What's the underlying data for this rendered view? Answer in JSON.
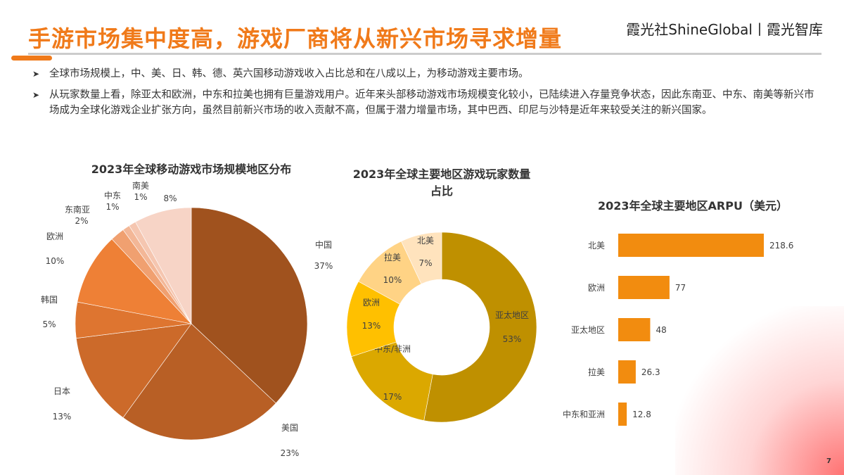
{
  "header": {
    "title": "手游市场集中度高，游戏厂商将从新兴市场寻求增量",
    "brand": "霞光社ShineGlobal丨霞光智库",
    "page_number": "7"
  },
  "bullets": [
    "全球市场规模上，中、美、日、韩、德、英六国移动游戏收入占比总和在八成以上，为移动游戏主要市场。",
    "从玩家数量上看，除亚太和欧洲，中东和拉美也拥有巨量游戏用户。近年来头部移动游戏市场规模变化较小，已陆续进入存量竞争状态，因此东南亚、中东、南美等新兴市场成为全球化游戏企业扩张方向，虽然目前新兴市场的收入贡献不高，但属于潜力增量市场，其中巴西、印尼与沙特是近年来较受关注的新兴国家。"
  ],
  "chart_data": [
    {
      "type": "pie",
      "title": "2023年全球移动游戏市场规模地区分布",
      "slices": [
        {
          "name": "中国",
          "value": 37,
          "label": "37%",
          "color": "#a0521e"
        },
        {
          "name": "美国",
          "value": 23,
          "label": "23%",
          "color": "#b85f25"
        },
        {
          "name": "日本",
          "value": 13,
          "label": "13%",
          "color": "#cc6a2a"
        },
        {
          "name": "韩国",
          "value": 5,
          "label": "5%",
          "color": "#de7530"
        },
        {
          "name": "欧洲",
          "value": 10,
          "label": "10%",
          "color": "#ee8036"
        },
        {
          "name": "东南亚",
          "value": 2,
          "label": "2%",
          "color": "#f0a070"
        },
        {
          "name": "中东",
          "value": 1,
          "label": "1%",
          "color": "#f3b797"
        },
        {
          "name": "南美",
          "value": 1,
          "label": "1%",
          "color": "#f5c6b0"
        },
        {
          "name": "",
          "value": 8,
          "label": "8%",
          "color": "#f7d4c6"
        }
      ]
    },
    {
      "type": "pie",
      "donut": true,
      "title": "2023年全球主要地区游戏玩家数量占比",
      "slices": [
        {
          "name": "亚太地区",
          "value": 53,
          "label": "53%",
          "color": "#bf9000"
        },
        {
          "name": "中东/非洲",
          "value": 17,
          "label": "17%",
          "color": "#dba800"
        },
        {
          "name": "欧洲",
          "value": 13,
          "label": "13%",
          "color": "#ffc000"
        },
        {
          "name": "拉美",
          "value": 10,
          "label": "10%",
          "color": "#ffd385"
        },
        {
          "name": "北美",
          "value": 7,
          "label": "7%",
          "color": "#ffe3bd"
        }
      ]
    },
    {
      "type": "bar",
      "orientation": "horizontal",
      "title": "2023年全球主要地区ARPU（美元）",
      "categories": [
        "北美",
        "欧洲",
        "亚太地区",
        "拉美",
        "中东和亚洲"
      ],
      "values": [
        218.6,
        77,
        48,
        26.3,
        12.8
      ],
      "value_labels": [
        "218.6",
        "77",
        "48",
        "26.3",
        "12.8"
      ],
      "color": "#f28c0f"
    }
  ]
}
